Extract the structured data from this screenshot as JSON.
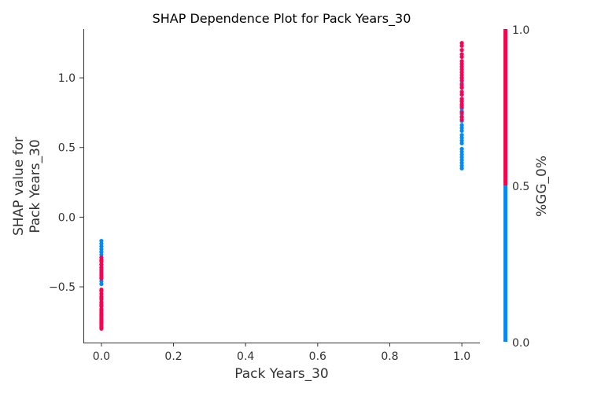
{
  "chart_data": {
    "type": "scatter",
    "title": "SHAP Dependence Plot for Pack Years_30",
    "xlabel": "Pack Years_30",
    "ylabel_lines": [
      "SHAP value for",
      "Pack Years_30"
    ],
    "xlim": [
      -0.05,
      1.05
    ],
    "ylim": [
      -0.9,
      1.35
    ],
    "xticks": [
      0.0,
      0.2,
      0.4,
      0.6,
      0.8,
      1.0
    ],
    "xtick_labels": [
      "0.0",
      "0.2",
      "0.4",
      "0.6",
      "0.8",
      "1.0"
    ],
    "yticks": [
      -0.5,
      0.0,
      0.5,
      1.0
    ],
    "ytick_labels": [
      "−0.5",
      "0.0",
      "0.5",
      "1.0"
    ],
    "colorbar": {
      "label": "%GG_0%",
      "range": [
        0.0,
        1.0
      ],
      "ticks": [
        0.0,
        0.5,
        1.0
      ],
      "tick_labels": [
        "0.0",
        "0.5",
        "1.0"
      ],
      "low_color": "#008bfb",
      "high_color": "#ff0051"
    },
    "series": [
      {
        "color": "#008bfb",
        "x": [
          0,
          0,
          0,
          0,
          0,
          0,
          0,
          0,
          0,
          0,
          0,
          0,
          0,
          0,
          0,
          0,
          0,
          0,
          0,
          0,
          1,
          1,
          1,
          1,
          1,
          1,
          1,
          1,
          1,
          1,
          1,
          1,
          1,
          1,
          1,
          1,
          1,
          1,
          1,
          1,
          1,
          1,
          1,
          1,
          1,
          1
        ],
        "y": [
          -0.17,
          -0.19,
          -0.21,
          -0.23,
          -0.25,
          -0.27,
          -0.29,
          -0.31,
          -0.34,
          -0.37,
          -0.39,
          -0.41,
          -0.43,
          -0.46,
          -0.48,
          -0.58,
          -0.62,
          -0.68,
          -0.72,
          -0.78,
          0.35,
          0.37,
          0.39,
          0.41,
          0.43,
          0.45,
          0.47,
          0.49,
          0.53,
          0.55,
          0.57,
          0.59,
          0.62,
          0.64,
          0.66,
          0.69,
          0.72,
          0.74,
          0.76,
          0.78,
          0.8,
          0.84,
          0.88,
          0.93,
          0.96,
          1.0
        ]
      },
      {
        "color": "#ff0051",
        "x": [
          0,
          0,
          0,
          0,
          0,
          0,
          0,
          0,
          0,
          0,
          0,
          0,
          0,
          0,
          0,
          0,
          0,
          0,
          0,
          0,
          0,
          0,
          0,
          0,
          0,
          0,
          0,
          0,
          0,
          1,
          1,
          1,
          1,
          1,
          1,
          1,
          1,
          1,
          1,
          1,
          1,
          1,
          1,
          1,
          1,
          1,
          1,
          1,
          1,
          1,
          1,
          1,
          1
        ],
        "y": [
          -0.29,
          -0.31,
          -0.32,
          -0.34,
          -0.36,
          -0.38,
          -0.4,
          -0.42,
          -0.44,
          -0.53,
          -0.55,
          -0.57,
          -0.59,
          -0.61,
          -0.63,
          -0.64,
          -0.66,
          -0.67,
          -0.69,
          -0.7,
          -0.71,
          -0.73,
          -0.74,
          -0.75,
          -0.76,
          -0.77,
          -0.79,
          -0.8,
          -0.52,
          0.7,
          0.72,
          0.75,
          0.79,
          0.81,
          0.83,
          0.85,
          0.88,
          0.9,
          0.93,
          0.95,
          0.98,
          1.0,
          1.02,
          1.04,
          1.06,
          1.08,
          1.1,
          1.12,
          1.15,
          1.17,
          1.2,
          1.23,
          1.25
        ]
      }
    ]
  }
}
